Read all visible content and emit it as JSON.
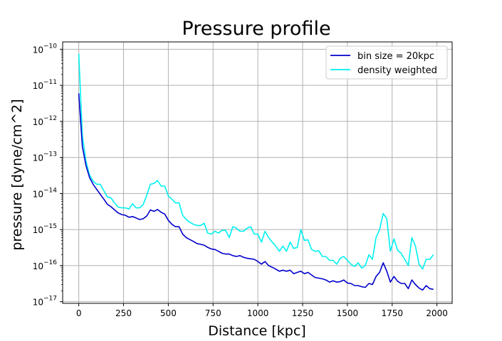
{
  "chart_data": {
    "type": "line",
    "title": "Pressure profile",
    "xlabel": "Distance [kpc]",
    "ylabel": "pressure [dyne/cm^2]",
    "xlim": [
      -90,
      2085
    ],
    "ylim": [
      9e-18,
      1.6e-10
    ],
    "yscale": "log",
    "grid": true,
    "legend_position": "top-right",
    "x_ticks": [
      0,
      250,
      500,
      750,
      1000,
      1250,
      1500,
      1750,
      2000
    ],
    "x_tick_labels": [
      "0",
      "250",
      "500",
      "750",
      "1000",
      "1250",
      "1500",
      "1750",
      "2000"
    ],
    "y_ticks": [
      1e-17,
      1e-16,
      1e-15,
      1e-14,
      1e-13,
      1e-12,
      1e-11,
      1e-10
    ],
    "y_tick_labels": [
      {
        "base": "10",
        "exp": "−17"
      },
      {
        "base": "10",
        "exp": "−16"
      },
      {
        "base": "10",
        "exp": "−15"
      },
      {
        "base": "10",
        "exp": "−14"
      },
      {
        "base": "10",
        "exp": "−13"
      },
      {
        "base": "10",
        "exp": "−12"
      },
      {
        "base": "10",
        "exp": "−11"
      },
      {
        "base": "10",
        "exp": "−10"
      }
    ],
    "x": [
      0,
      20,
      40,
      60,
      80,
      100,
      120,
      140,
      160,
      180,
      200,
      220,
      240,
      260,
      280,
      300,
      320,
      340,
      360,
      380,
      400,
      420,
      440,
      460,
      480,
      500,
      520,
      540,
      560,
      580,
      600,
      620,
      640,
      660,
      680,
      700,
      720,
      740,
      760,
      780,
      800,
      820,
      840,
      860,
      880,
      900,
      920,
      940,
      960,
      980,
      1000,
      1020,
      1040,
      1060,
      1080,
      1100,
      1120,
      1140,
      1160,
      1180,
      1200,
      1220,
      1240,
      1260,
      1280,
      1300,
      1320,
      1340,
      1360,
      1380,
      1400,
      1420,
      1440,
      1460,
      1480,
      1500,
      1520,
      1540,
      1560,
      1580,
      1600,
      1620,
      1640,
      1660,
      1680,
      1700,
      1720,
      1740,
      1760,
      1780,
      1800,
      1820,
      1840,
      1860,
      1880,
      1900,
      1920,
      1940,
      1960,
      1980
    ],
    "series": [
      {
        "name": "bin size = 20kpc",
        "color": "#0000cc",
        "values": [
          6e-12,
          2e-13,
          6e-14,
          2.8e-14,
          1.8e-14,
          1.3e-14,
          9.5e-15,
          7e-15,
          5e-15,
          4.3e-15,
          3.5e-15,
          2.9e-15,
          2.6e-15,
          2.5e-15,
          2.2e-15,
          2.3e-15,
          2.1e-15,
          1.9e-15,
          2e-15,
          2.4e-15,
          3.5e-15,
          3.2e-15,
          3.6e-15,
          3e-15,
          2.7e-15,
          1.8e-15,
          1.4e-15,
          1.2e-15,
          1.2e-15,
          7.5e-16,
          6e-16,
          5.3e-16,
          4.7e-16,
          4.1e-16,
          3.9e-16,
          3.7e-16,
          3.2e-16,
          2.9e-16,
          2.8e-16,
          2.5e-16,
          2.2e-16,
          2.1e-16,
          2.1e-16,
          1.9e-16,
          1.8e-16,
          1.9e-16,
          1.7e-16,
          1.6e-16,
          1.55e-16,
          1.5e-16,
          1.3e-16,
          1.1e-16,
          1.3e-16,
          1e-16,
          9e-17,
          8e-17,
          7e-17,
          7.5e-17,
          7e-17,
          7.5e-17,
          6e-17,
          6.5e-17,
          7e-17,
          6e-17,
          6.5e-17,
          5.5e-17,
          4.7e-17,
          4.5e-17,
          4.3e-17,
          4e-17,
          3.5e-17,
          3.8e-17,
          3.5e-17,
          3.6e-17,
          4e-17,
          3.3e-17,
          3.2e-17,
          2.8e-17,
          2.8e-17,
          2.6e-17,
          2.5e-17,
          3.2e-17,
          3e-17,
          5e-17,
          6.5e-17,
          1.2e-16,
          7e-17,
          3.5e-17,
          5e-17,
          3.7e-17,
          3.2e-17,
          3.2e-17,
          2.3e-17,
          4e-17,
          3e-17,
          2.4e-17,
          2.1e-17,
          2.8e-17,
          2.3e-17,
          2.2e-17
        ]
      },
      {
        "name": "density weighted",
        "color": "#00f0f0",
        "values": [
          7.5e-11,
          4e-13,
          8e-14,
          3.3e-14,
          2.2e-14,
          1.8e-14,
          1.8e-14,
          1.2e-14,
          8e-15,
          7.5e-15,
          5.5e-15,
          4.2e-15,
          4e-15,
          4e-15,
          3.7e-15,
          5.2e-15,
          4e-15,
          4e-15,
          5e-15,
          9e-15,
          1.8e-14,
          1.9e-14,
          2.3e-14,
          1.6e-14,
          1.6e-14,
          8.5e-15,
          7e-15,
          5.5e-15,
          5.5e-15,
          2.5e-15,
          1.9e-15,
          1.6e-15,
          1.4e-15,
          1.3e-15,
          1.3e-15,
          1.5e-15,
          8e-16,
          7.5e-16,
          9e-16,
          8e-16,
          9.5e-16,
          9.5e-16,
          6e-16,
          1.2e-15,
          1.1e-15,
          9e-16,
          9e-16,
          1.1e-15,
          1.2e-15,
          7.5e-16,
          7.5e-16,
          4.5e-16,
          9e-16,
          6e-16,
          4.5e-16,
          3.5e-16,
          2.5e-16,
          3.5e-16,
          2.5e-16,
          4.5e-16,
          3e-16,
          3.2e-16,
          1e-15,
          5e-16,
          5.2e-16,
          2.8e-16,
          2.5e-16,
          2.6e-16,
          1.8e-16,
          1.8e-16,
          1.4e-16,
          1.4e-16,
          1.1e-16,
          1.6e-16,
          1.8e-16,
          1.4e-16,
          1.1e-16,
          9.5e-17,
          1.2e-16,
          8.5e-17,
          1e-16,
          2e-16,
          1.5e-16,
          6e-16,
          1e-15,
          2.8e-15,
          2e-15,
          2.5e-16,
          5.5e-16,
          2.7e-16,
          2.2e-16,
          1.5e-16,
          1e-16,
          6e-16,
          3.5e-16,
          1.1e-16,
          8e-17,
          1.5e-16,
          1.5e-16,
          2e-16
        ]
      }
    ]
  }
}
